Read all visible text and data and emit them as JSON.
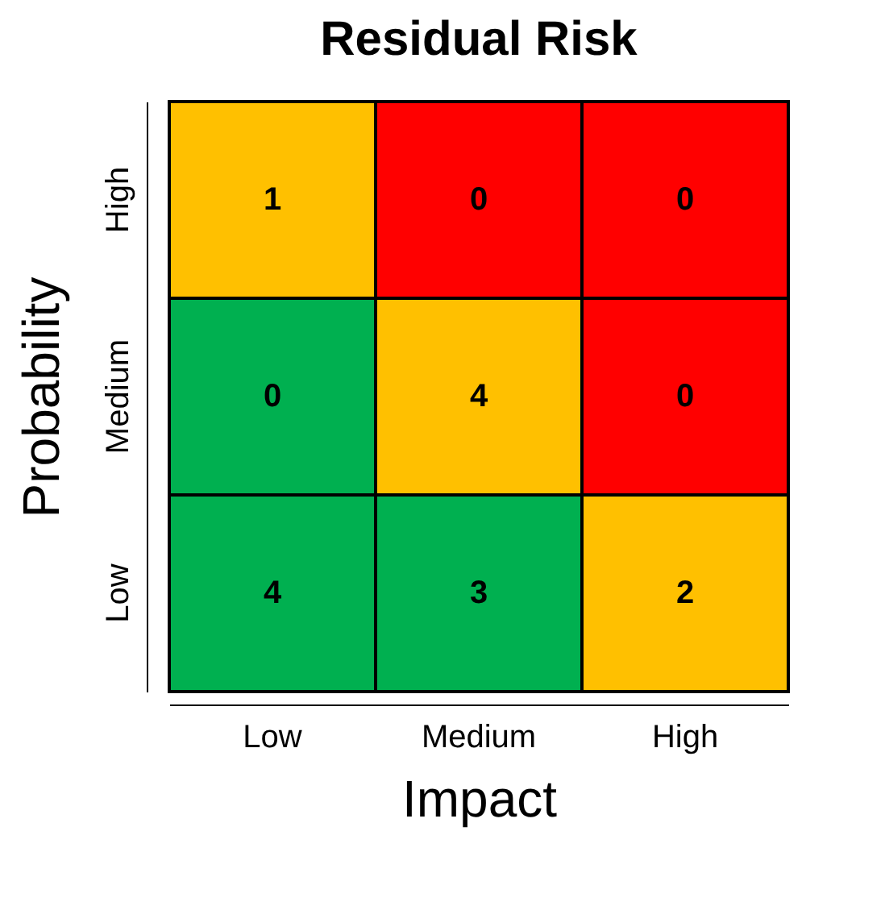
{
  "chart_data": {
    "type": "heatmap",
    "title": "Residual Risk",
    "xlabel": "Impact",
    "ylabel": "Probability",
    "categories": [
      "Low",
      "Medium",
      "High"
    ],
    "y_categories": [
      "High",
      "Medium",
      "Low"
    ],
    "cells": [
      [
        1,
        0,
        0
      ],
      [
        0,
        4,
        0
      ],
      [
        4,
        3,
        2
      ]
    ],
    "colors": [
      [
        "#ffc000",
        "#ff0000",
        "#ff0000"
      ],
      [
        "#00b050",
        "#ffc000",
        "#ff0000"
      ],
      [
        "#00b050",
        "#00b050",
        "#ffc000"
      ]
    ],
    "data_labels": true
  }
}
